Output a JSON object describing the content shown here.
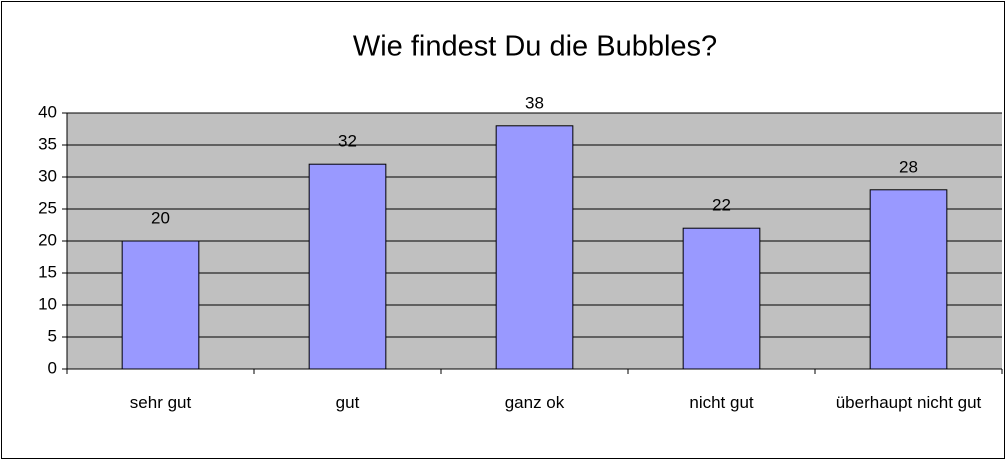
{
  "chart_data": {
    "type": "bar",
    "title": "Wie findest Du die Bubbles?",
    "categories": [
      "sehr gut",
      "gut",
      "ganz ok",
      "nicht gut",
      "überhaupt nicht gut"
    ],
    "values": [
      20,
      32,
      38,
      22,
      28
    ],
    "color": "#9999ff",
    "ylim": [
      0,
      40
    ],
    "yticks": [
      0,
      5,
      10,
      15,
      20,
      25,
      30,
      35,
      40
    ],
    "grid": true
  }
}
